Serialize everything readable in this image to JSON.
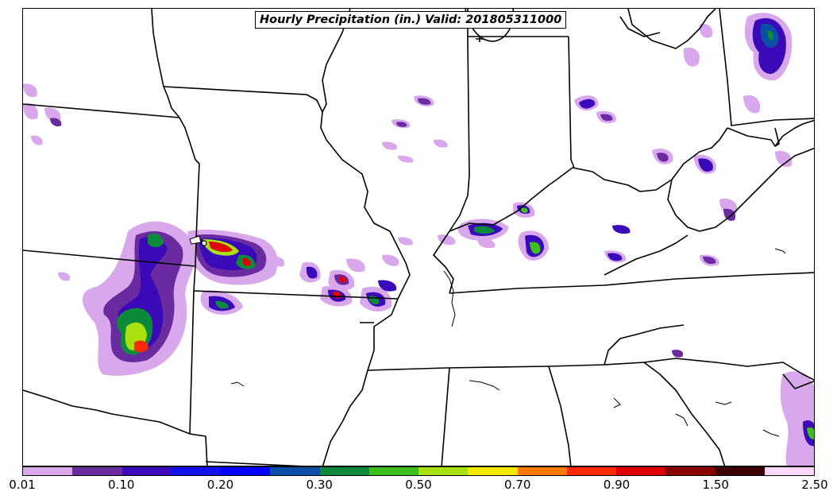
{
  "title": "Hourly Precipitation (in.) Valid: 201805311000",
  "colorbar": {
    "colors": [
      "#d9a8ec",
      "#6a2ba0",
      "#3a0ab8",
      "#1010e8",
      "#0000ff",
      "#0a4ea8",
      "#0a8a3a",
      "#3cbf1a",
      "#a8e010",
      "#f6e800",
      "#ff7a00",
      "#ff2a00",
      "#e00000",
      "#8a0000",
      "#3a0000",
      "#fcd8fc"
    ],
    "tick_labels": [
      "0.01",
      "0.10",
      "0.20",
      "0.30",
      "0.50",
      "0.70",
      "0.90",
      "1.50",
      "2.50"
    ]
  }
}
